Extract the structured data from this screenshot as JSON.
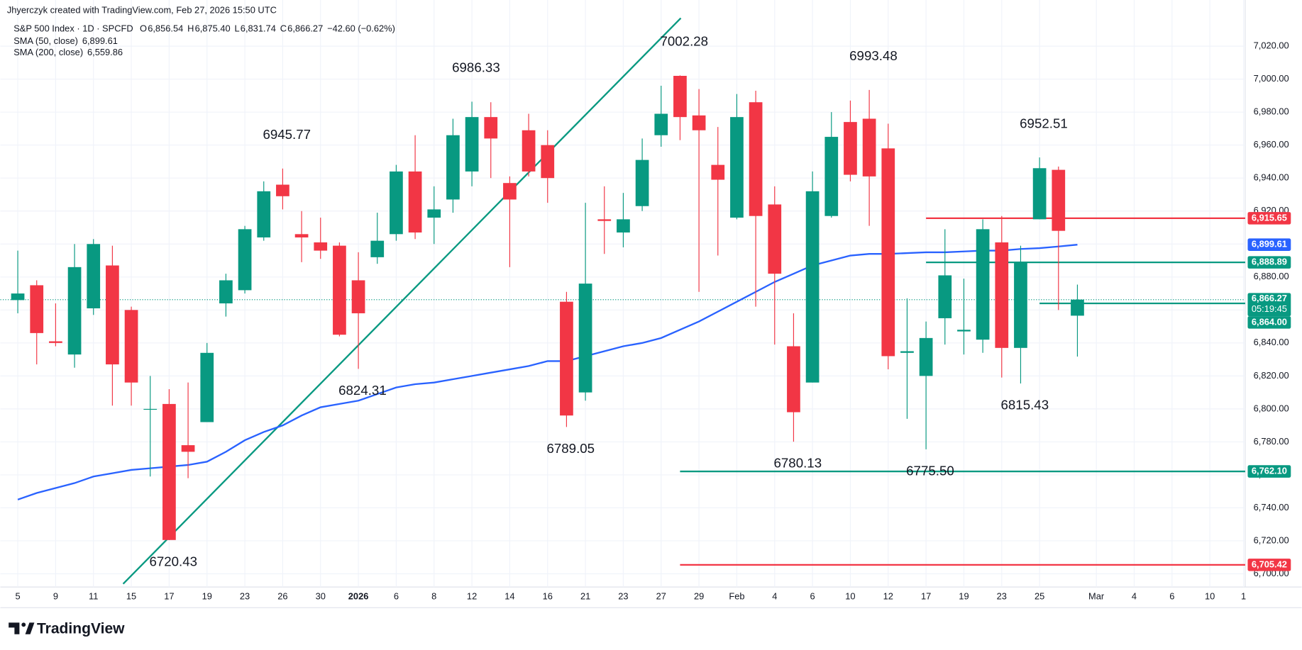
{
  "header": {
    "credit": "Jhyerczyk created with TradingView.com, Feb 27, 2026 15:50 UTC"
  },
  "footer": {
    "brand": "TradingView"
  },
  "chart_data": {
    "type": "candlestick",
    "title": "S&P 500 Index · 1D · SPCFD",
    "ohlc_legend": [
      {
        "key": "O",
        "value": 6856.54,
        "label": "6,856.54"
      },
      {
        "key": "H",
        "value": 6875.4,
        "label": "6,875.40"
      },
      {
        "key": "L",
        "value": 6831.74,
        "label": "6,831.74"
      },
      {
        "key": "C",
        "value": 6866.27,
        "label": "6,866.27"
      }
    ],
    "change_label": "−42.60 (−0.62%)",
    "countdown": "05:19:45",
    "up_color": "#089981",
    "down_color": "#f23645",
    "categories": [
      "5",
      null,
      "9",
      null,
      "11",
      null,
      "15",
      null,
      "17",
      null,
      "19",
      null,
      "23",
      null,
      "26",
      null,
      "30",
      null,
      "2026",
      null,
      "6",
      null,
      "8",
      null,
      "12",
      null,
      "14",
      null,
      "16",
      null,
      "21",
      null,
      "23",
      null,
      "27",
      null,
      "29",
      null,
      "Feb",
      null,
      "4",
      null,
      "6",
      null,
      "10",
      null,
      "12",
      null,
      "17",
      null,
      "19",
      null,
      "23",
      null,
      "25",
      null,
      null
    ],
    "future_xticks": [
      "Mar",
      "4",
      "6",
      "10",
      "1"
    ],
    "open": [
      6866,
      6875,
      6841,
      6833,
      6861,
      6887,
      6860,
      6800,
      6803,
      6778,
      6792,
      6864,
      6872,
      6904,
      6936,
      6906,
      6901,
      6899,
      6878,
      6892,
      6906,
      6944,
      6916,
      6927,
      6944,
      6977,
      6937,
      6969,
      6960,
      6865,
      6810,
      6915,
      6907,
      6923,
      6966,
      7002,
      6978,
      6948,
      6916,
      6986,
      6924,
      6838,
      6816,
      6917,
      6974,
      6976,
      6958,
      6834,
      6820,
      6855,
      6847,
      6842,
      6901,
      6837,
      6915,
      6945,
      6856.54
    ],
    "high": [
      6896,
      6878,
      6864,
      6900,
      6903,
      6899,
      6862,
      6820,
      6812,
      6816,
      6840,
      6882,
      6911,
      6938,
      6945.77,
      6920,
      6916,
      6901,
      6895,
      6919,
      6948,
      6966,
      6935,
      6976,
      6986.33,
      6986,
      6941,
      6979,
      6969,
      6871,
      6925,
      6935,
      6931,
      6964,
      6996,
      7002.28,
      6994,
      6971,
      6991,
      6993,
      6935,
      6858,
      6944,
      6980,
      6987,
      6993.48,
      6973,
      6867,
      6853,
      6909,
      6879,
      6915,
      6917,
      6899,
      6952.51,
      6947,
      6875.4
    ],
    "low": [
      6858,
      6827,
      6838,
      6825,
      6857,
      6802,
      6802,
      6759,
      6720.43,
      6758,
      6792,
      6856,
      6870,
      6902,
      6921,
      6889,
      6891,
      6844,
      6824.31,
      6888,
      6902,
      6903,
      6900,
      6919,
      6935,
      6940,
      6886,
      6941,
      6925,
      6789.05,
      6805,
      6894,
      6898,
      6920,
      6959,
      6963,
      6871,
      6893,
      6915,
      6862,
      6839,
      6780.13,
      6816,
      6916,
      6938,
      6911,
      6824,
      6794,
      6775.5,
      6839,
      6833,
      6834,
      6819,
      6815.43,
      6915,
      6860,
      6831.74
    ],
    "close": [
      6870,
      6846,
      6840,
      6886,
      6900,
      6827,
      6816,
      6800,
      6720.5,
      6774,
      6834,
      6878,
      6909,
      6932,
      6929,
      6904,
      6896,
      6845,
      6858,
      6902,
      6944,
      6907,
      6921,
      6966,
      6977,
      6964,
      6927,
      6944,
      6940,
      6796,
      6876,
      6914,
      6915,
      6951,
      6979,
      6977,
      6969,
      6939,
      6977,
      6917,
      6882,
      6798,
      6932,
      6965,
      6942,
      6941,
      6832,
      6835,
      6843,
      6881,
      6848,
      6909,
      6837,
      6889,
      6946,
      6908,
      6866.27
    ],
    "series": [
      {
        "name": "SMA (50, close)",
        "color": "#2962ff",
        "value_label": "6,899.61",
        "values": [
          6745,
          6749,
          6752,
          6755,
          6759,
          6761,
          6763,
          6764,
          6765,
          6766,
          6768,
          6774,
          6781,
          6786,
          6790,
          6796,
          6801,
          6803,
          6805,
          6809,
          6813,
          6815,
          6816,
          6818,
          6820,
          6822,
          6824,
          6826,
          6829,
          6829,
          6832,
          6835,
          6838,
          6840,
          6843,
          6848,
          6853,
          6859,
          6865,
          6871,
          6877,
          6882,
          6887,
          6890,
          6893,
          6894,
          6894,
          6894.5,
          6895,
          6895,
          6895.5,
          6896,
          6896,
          6897,
          6897.5,
          6898.5,
          6899.61
        ]
      },
      {
        "name": "SMA (200, close)",
        "color": "#2a2ed0",
        "value_label": "6,559.86"
      }
    ],
    "levels": [
      {
        "value": 6915.65,
        "label": "6,915.65",
        "color": "#f23645"
      },
      {
        "value": 6888.89,
        "label": "6,888.89",
        "color": "#089981"
      },
      {
        "value": 6864,
        "label": "6,864.00",
        "color": "#089981"
      },
      {
        "value": 6762.1,
        "label": "6,762.10",
        "color": "#089981"
      },
      {
        "value": 6705.42,
        "label": "6,705.42",
        "color": "#f23645"
      }
    ],
    "trendline": {
      "color": "#089981",
      "values": [
        6693.9,
        7037
      ]
    },
    "annotations": [
      {
        "label": "6945.77",
        "value": 6945.77,
        "kind": "high"
      },
      {
        "label": "6986.33",
        "value": 6986.33,
        "kind": "high"
      },
      {
        "label": "7002.28",
        "value": 7002.28,
        "kind": "high"
      },
      {
        "label": "6993.48",
        "value": 6993.48,
        "kind": "high"
      },
      {
        "label": "6952.51",
        "value": 6952.51,
        "kind": "high"
      },
      {
        "label": "6720.43",
        "value": 6720.43,
        "kind": "low"
      },
      {
        "label": "6824.31",
        "value": 6824.31,
        "kind": "low"
      },
      {
        "label": "6789.05",
        "value": 6789.05,
        "kind": "low"
      },
      {
        "label": "6780.13",
        "value": 6780.13,
        "kind": "low"
      },
      {
        "label": "6775.50",
        "value": 6775.5,
        "kind": "low"
      },
      {
        "label": "6815.43",
        "value": 6815.43,
        "kind": "low"
      }
    ],
    "ylim": [
      6692,
      7048
    ],
    "yticks": [
      {
        "value": 6700,
        "label": "6,700.00"
      },
      {
        "value": 6720,
        "label": "6,720.00"
      },
      {
        "value": 6740,
        "label": "6,740.00"
      },
      {
        "value": 6760,
        "label": "6,760.00"
      },
      {
        "value": 6780,
        "label": "6,780.00"
      },
      {
        "value": 6800,
        "label": "6,800.00"
      },
      {
        "value": 6820,
        "label": "6,820.00"
      },
      {
        "value": 6840,
        "label": "6,840.00"
      },
      {
        "value": 6860,
        "label": "6,860.00"
      },
      {
        "value": 6880,
        "label": "6,880.00"
      },
      {
        "value": 6900,
        "label": "6,900.00"
      },
      {
        "value": 6920,
        "label": "6,920.00"
      },
      {
        "value": 6940,
        "label": "6,940.00"
      },
      {
        "value": 6960,
        "label": "6,960.00"
      },
      {
        "value": 6980,
        "label": "6,980.00"
      },
      {
        "value": 7000,
        "label": "7,000.00"
      },
      {
        "value": 7020,
        "label": "7,020.00"
      }
    ],
    "grid": true
  }
}
